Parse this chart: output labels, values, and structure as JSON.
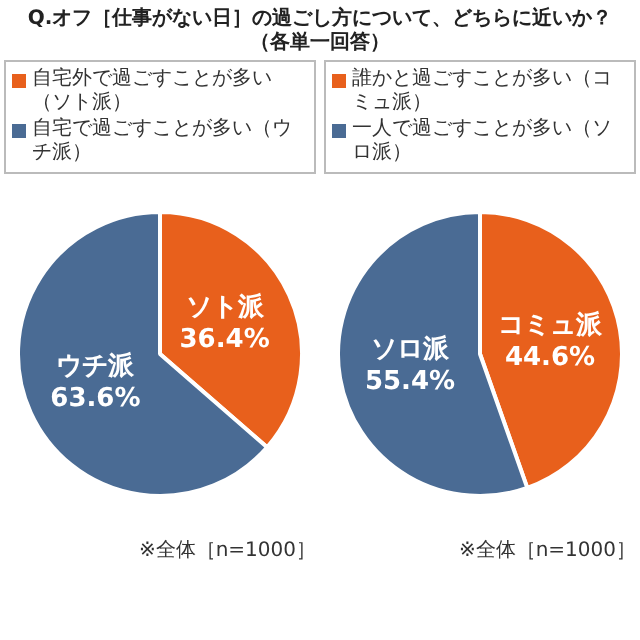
{
  "chart_data": [
    {
      "type": "pie",
      "title": "Q.オフ［仕事がない日］の過ごし方について、どちらに近いか？（各単一回答）",
      "categories": [
        "自宅外で過ごすことが多い（ソト派）",
        "自宅で過ごすことが多い（ウチ派）"
      ],
      "values": [
        36.4,
        63.6
      ],
      "colors": [
        "#e8601c",
        "#4a6b94"
      ],
      "value_labels": [
        "ソト派 36.4%",
        "ウチ派 63.6%"
      ],
      "legend": "top",
      "annotations": [
        "※全体［n=1000］"
      ]
    },
    {
      "type": "pie",
      "categories": [
        "誰かと過ごすことが多い（コミュ派）",
        "一人で過ごすことが多い（ソロ派）"
      ],
      "values": [
        44.6,
        55.4
      ],
      "colors": [
        "#e8601c",
        "#4a6b94"
      ],
      "value_labels": [
        "コミュ派 44.6%",
        "ソロ派 55.4%"
      ],
      "legend": "top",
      "annotations": [
        "※全体［n=1000］"
      ]
    }
  ]
}
